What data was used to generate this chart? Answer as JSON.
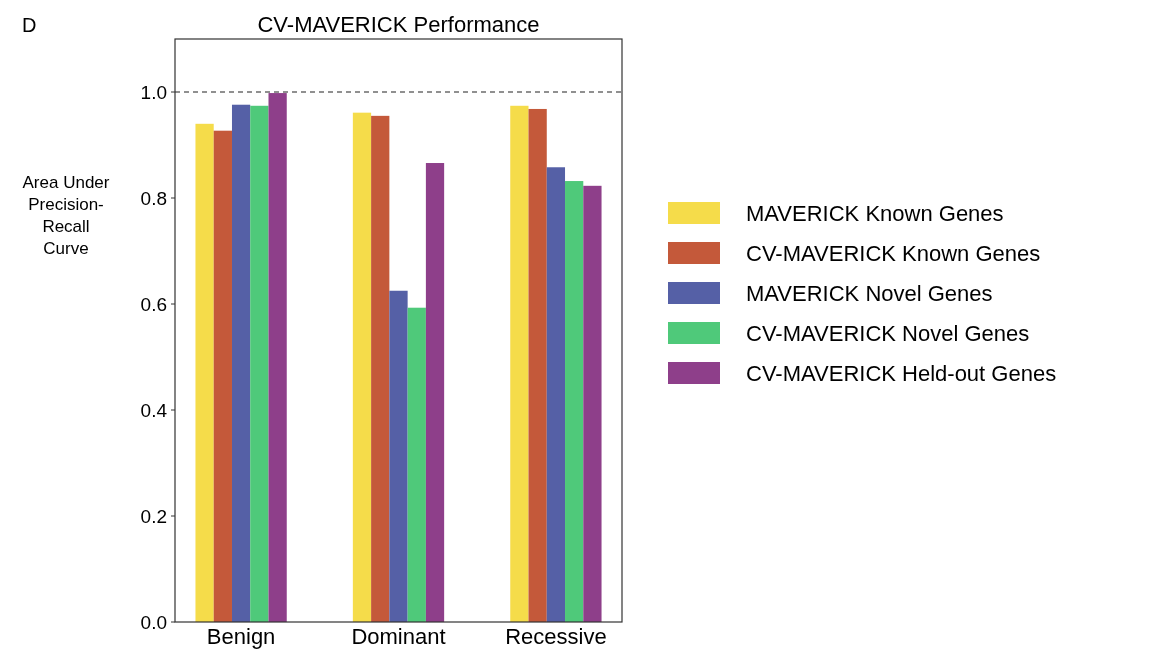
{
  "chart_data": {
    "type": "bar",
    "title": "CV-MAVERICK Performance",
    "ylabel": "Area Under Precision-Recall Curve",
    "categories": [
      "Benign",
      "Dominant",
      "Recessive"
    ],
    "series": [
      {
        "name": "MAVERICK Known Genes",
        "color": "#f5dc4a",
        "values": [
          0.94,
          0.961,
          0.974
        ]
      },
      {
        "name": "CV-MAVERICK Known Genes",
        "color": "#c4593a",
        "values": [
          0.927,
          0.955,
          0.968
        ]
      },
      {
        "name": "MAVERICK Novel Genes",
        "color": "#5560a6",
        "values": [
          0.976,
          0.625,
          0.858
        ]
      },
      {
        "name": "CV-MAVERICK Novel Genes",
        "color": "#4fc97a",
        "values": [
          0.974,
          0.593,
          0.832
        ]
      },
      {
        "name": "CV-MAVERICK Held-out Genes",
        "color": "#8e3f8a",
        "values": [
          0.998,
          0.866,
          0.823
        ]
      }
    ],
    "ylim": [
      0,
      1.1
    ],
    "yticks": [
      {
        "value": 0,
        "label": "0.0"
      },
      0.2,
      0.4,
      0.6,
      0.8,
      {
        "value": 1,
        "label": "1.0"
      }
    ],
    "ref_lines": [
      {
        "axis": "y",
        "value": 1,
        "color": "#222222",
        "line_style": "dashed"
      }
    ],
    "annotations": [
      "D"
    ],
    "legend": "right",
    "grid": false
  }
}
